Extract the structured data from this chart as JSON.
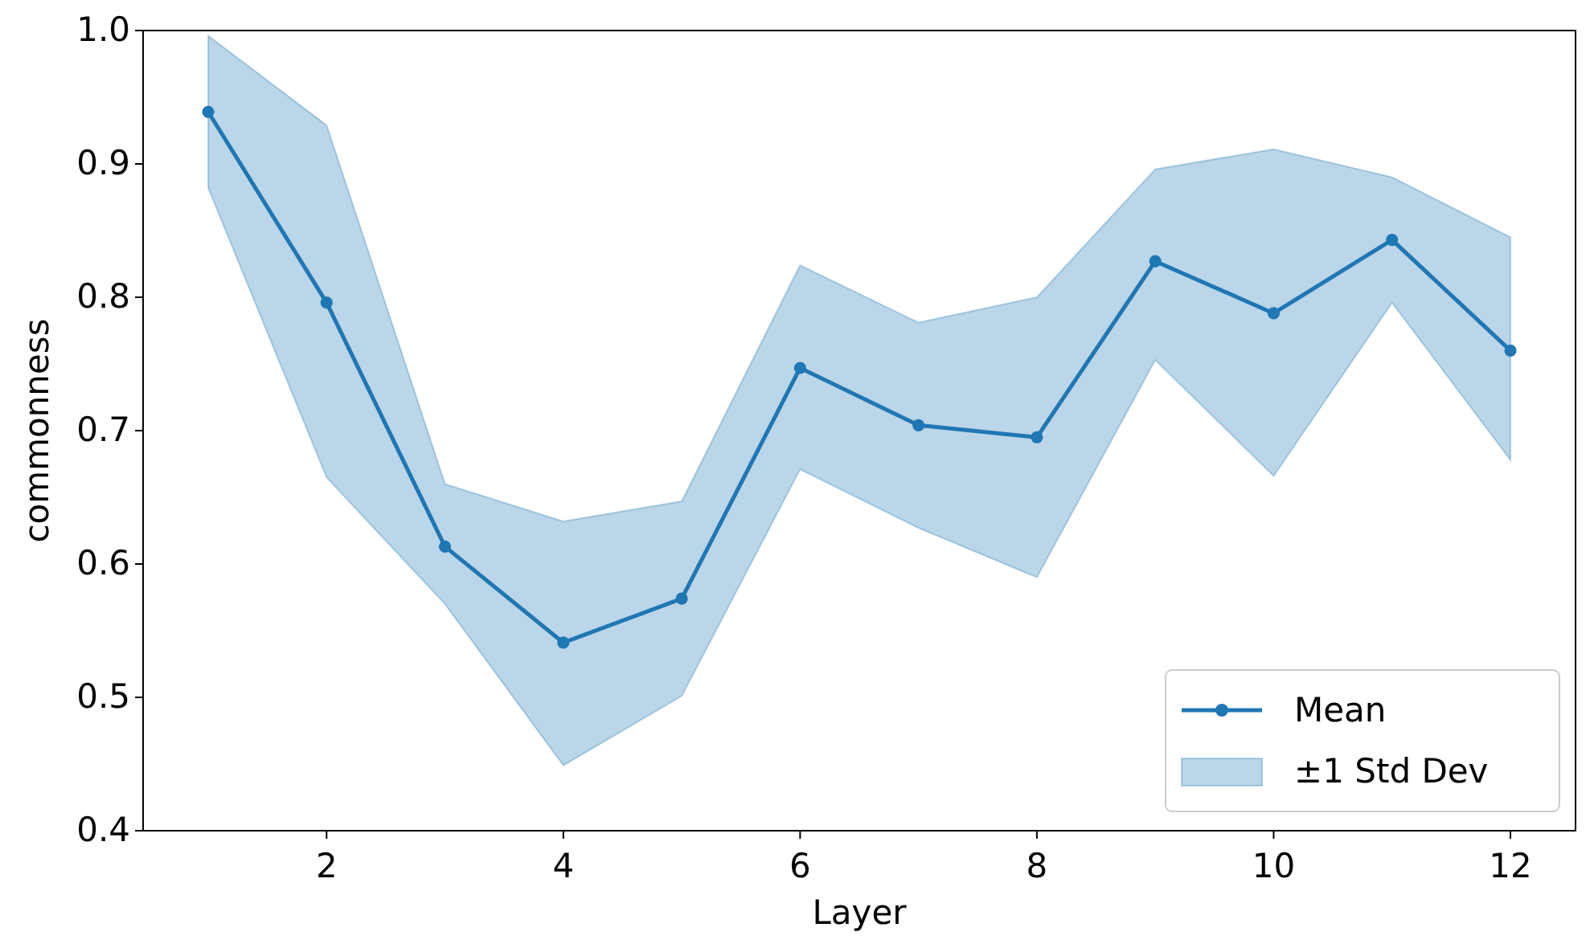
{
  "chart_data": {
    "type": "line",
    "xlabel": "Layer",
    "ylabel": "commonness",
    "x": [
      1,
      2,
      3,
      4,
      5,
      6,
      7,
      8,
      9,
      10,
      11,
      12
    ],
    "series": [
      {
        "name": "Mean",
        "color": "#1f77b4",
        "values": [
          0.939,
          0.796,
          0.613,
          0.541,
          0.574,
          0.747,
          0.704,
          0.695,
          0.827,
          0.788,
          0.843,
          0.76
        ],
        "lower": [
          0.882,
          0.665,
          0.57,
          0.449,
          0.501,
          0.671,
          0.627,
          0.59,
          0.753,
          0.666,
          0.796,
          0.678
        ],
        "upper": [
          0.996,
          0.929,
          0.66,
          0.632,
          0.647,
          0.824,
          0.781,
          0.8,
          0.896,
          0.911,
          0.89,
          0.845
        ]
      }
    ],
    "annotations": [
      "±1 Std Dev"
    ],
    "marker": "circle",
    "xlim": [
      0.45,
      12.55
    ],
    "xticks": [
      2,
      4,
      6,
      8,
      10,
      12
    ],
    "ylim": [
      0.4,
      1.0
    ],
    "yticks": [
      {
        "value": 0.4,
        "label": "0.4"
      },
      {
        "value": 0.5,
        "label": "0.5"
      },
      {
        "value": 0.6,
        "label": "0.6"
      },
      {
        "value": 0.7,
        "label": "0.7"
      },
      {
        "value": 0.8,
        "label": "0.8"
      },
      {
        "value": 0.9,
        "label": "0.9"
      },
      {
        "value": 1.0,
        "label": "1.0"
      }
    ],
    "legend": "bottom right",
    "grid": false
  }
}
